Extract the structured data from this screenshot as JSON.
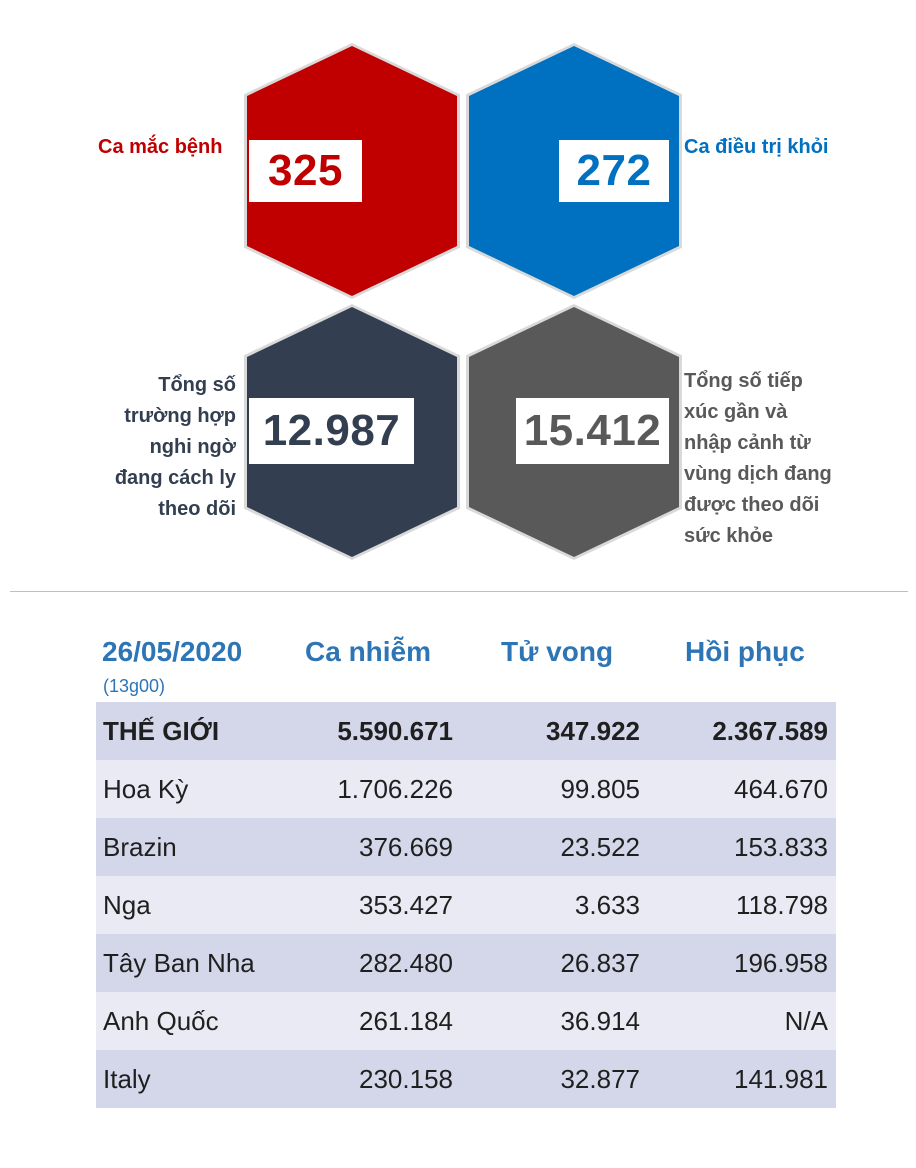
{
  "stats": {
    "cases": {
      "label": "Ca mắc bệnh",
      "value": "325",
      "color": "#c00000"
    },
    "recovered": {
      "label": "Ca điều trị khỏi",
      "value": "272",
      "color": "#0070c0"
    },
    "quarantine": {
      "label_lines": [
        "Tổng số",
        "trường hợp",
        "nghi ngờ",
        "đang cách ly",
        "theo dõi"
      ],
      "value": "12.987",
      "color": "#333f50"
    },
    "monitored": {
      "label_lines": [
        "Tổng số tiếp",
        "xúc gần và",
        "nhập cảnh từ",
        "vùng dịch đang",
        "được theo dõi",
        "sức khỏe"
      ],
      "value": "15.412",
      "color": "#595959"
    }
  },
  "table": {
    "date": "26/05/2020",
    "time": "(13g00)",
    "headers": [
      "Ca nhiễm",
      "Tử vong",
      "Hồi phục"
    ],
    "rows": [
      {
        "name": "THẾ GIỚI",
        "cases": "5.590.671",
        "deaths": "347.922",
        "recovered": "2.367.589"
      },
      {
        "name": "Hoa Kỳ",
        "cases": "1.706.226",
        "deaths": "99.805",
        "recovered": "464.670"
      },
      {
        "name": "Brazin",
        "cases": "376.669",
        "deaths": "23.522",
        "recovered": "153.833"
      },
      {
        "name": "Nga",
        "cases": "353.427",
        "deaths": "3.633",
        "recovered": "118.798"
      },
      {
        "name": "Tây Ban Nha",
        "cases": "282.480",
        "deaths": "26.837",
        "recovered": "196.958"
      },
      {
        "name": "Anh Quốc",
        "cases": "261.184",
        "deaths": "36.914",
        "recovered": "N/A"
      },
      {
        "name": "Italy",
        "cases": "230.158",
        "deaths": "32.877",
        "recovered": "141.981"
      }
    ]
  }
}
